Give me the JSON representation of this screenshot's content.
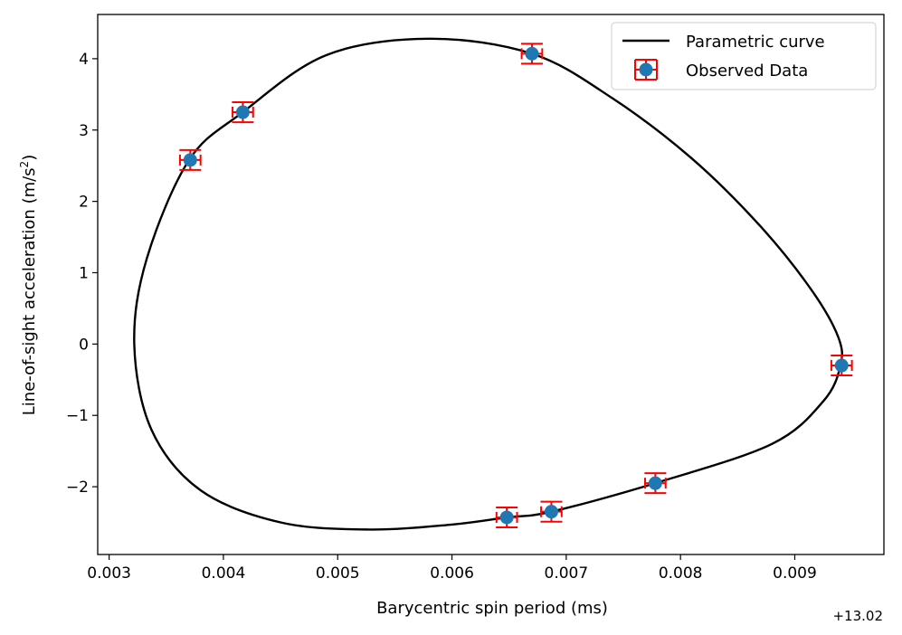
{
  "chart_data": {
    "type": "scatter",
    "title": "",
    "xlabel": "Barycentric spin period (ms)",
    "ylabel_main": "Line-of-sight acceleration (m/s",
    "ylabel_sup": "2",
    "ylabel_close": ")",
    "x_offset_label": "+13.02",
    "xlim": [
      0.0029,
      0.00978
    ],
    "ylim": [
      -2.95,
      4.62
    ],
    "x_ticks": [
      {
        "value": 0.003,
        "label": "0.003"
      },
      {
        "value": 0.004,
        "label": "0.004"
      },
      {
        "value": 0.005,
        "label": "0.005"
      },
      {
        "value": 0.006,
        "label": "0.006"
      },
      {
        "value": 0.007,
        "label": "0.007"
      },
      {
        "value": 0.008,
        "label": "0.008"
      },
      {
        "value": 0.009,
        "label": "0.009"
      }
    ],
    "y_ticks": [
      {
        "value": -2,
        "label": "−2"
      },
      {
        "value": -1,
        "label": "−1"
      },
      {
        "value": 0,
        "label": "0"
      },
      {
        "value": 1,
        "label": "1"
      },
      {
        "value": 2,
        "label": "2"
      },
      {
        "value": 3,
        "label": "3"
      },
      {
        "value": 4,
        "label": "4"
      }
    ],
    "legend_position": "top-right",
    "series": [
      {
        "name": "Parametric curve",
        "kind": "line",
        "color": "#000000",
        "points": [
          [
            0.0058,
            4.28
          ],
          [
            0.0067,
            4.07
          ],
          [
            0.0074,
            3.45
          ],
          [
            0.0081,
            2.6
          ],
          [
            0.0087,
            1.65
          ],
          [
            0.00915,
            0.75
          ],
          [
            0.00938,
            0.1
          ],
          [
            0.0094,
            -0.3
          ],
          [
            0.00925,
            -0.8
          ],
          [
            0.0088,
            -1.4
          ],
          [
            0.00778,
            -1.95
          ],
          [
            0.00687,
            -2.35
          ],
          [
            0.00648,
            -2.43
          ],
          [
            0.006,
            -2.53
          ],
          [
            0.00527,
            -2.6
          ],
          [
            0.0045,
            -2.5
          ],
          [
            0.0038,
            -2.05
          ],
          [
            0.00337,
            -1.2
          ],
          [
            0.00322,
            0.0
          ],
          [
            0.00333,
            1.2
          ],
          [
            0.0037,
            2.58
          ],
          [
            0.00417,
            3.25
          ],
          [
            0.0049,
            4.05
          ]
        ]
      },
      {
        "name": "Observed Data",
        "kind": "errorbar",
        "marker_color": "#1f77b4",
        "error_color": "#ff0000",
        "x_err": 9e-05,
        "y_err": 0.14,
        "points": [
          [
            0.0067,
            4.07
          ],
          [
            0.00417,
            3.25
          ],
          [
            0.00371,
            2.58
          ],
          [
            0.00941,
            -0.3
          ],
          [
            0.00778,
            -1.95
          ],
          [
            0.00687,
            -2.35
          ],
          [
            0.00648,
            -2.43
          ]
        ]
      }
    ]
  }
}
